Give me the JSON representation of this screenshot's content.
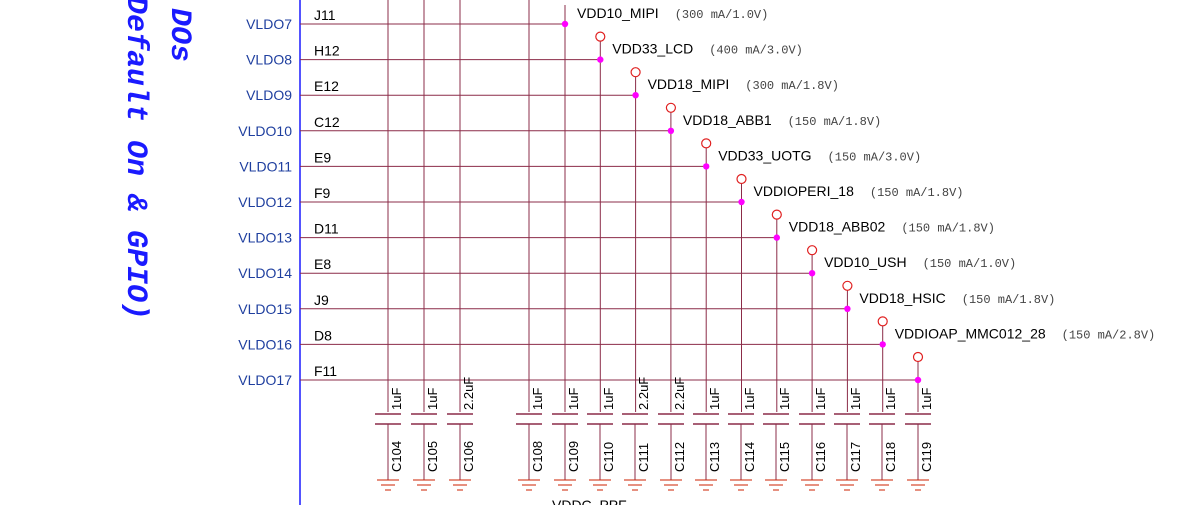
{
  "side_title": {
    "line1": "DOs",
    "line2": "Default On & GPIO)"
  },
  "colors": {
    "wire": "#8b2c48",
    "label_blue": "#1f3f9f",
    "pin_dot": "#ff00ff",
    "terminal": "#e02020",
    "bus": "#1a1aff",
    "ground": "#cc2200"
  },
  "ldos": [
    {
      "name": "VLDO7",
      "pin": "J11",
      "net": "VDD10_MIPI",
      "rating": "(300 mA/1.0V)"
    },
    {
      "name": "VLDO8",
      "pin": "H12",
      "net": "VDD33_LCD",
      "rating": "(400 mA/3.0V)"
    },
    {
      "name": "VLDO9",
      "pin": "E12",
      "net": "VDD18_MIPI",
      "rating": "(300 mA/1.8V)"
    },
    {
      "name": "VLDO10",
      "pin": "C12",
      "net": "VDD18_ABB1",
      "rating": "(150 mA/1.8V)"
    },
    {
      "name": "VLDO11",
      "pin": "E9",
      "net": "VDD33_UOTG",
      "rating": "(150 mA/3.0V)"
    },
    {
      "name": "VLDO12",
      "pin": "F9",
      "net": "VDDIOPERI_18",
      "rating": "(150 mA/1.8V)"
    },
    {
      "name": "VLDO13",
      "pin": "D11",
      "net": "VDD18_ABB02",
      "rating": "(150 mA/1.8V)"
    },
    {
      "name": "VLDO14",
      "pin": "E8",
      "net": "VDD10_USH",
      "rating": "(150 mA/1.0V)"
    },
    {
      "name": "VLDO15",
      "pin": "J9",
      "net": "VDD18_HSIC",
      "rating": "(150 mA/1.8V)"
    },
    {
      "name": "VLDO16",
      "pin": "D8",
      "net": "VDDIOAP_MMC012_28",
      "rating": "(150 mA/2.8V)"
    },
    {
      "name": "VLDO17",
      "pin": "F11",
      "net": "",
      "rating": ""
    }
  ],
  "capacitors": [
    {
      "ref": "C104",
      "value": "1uF"
    },
    {
      "ref": "C105",
      "value": "1uF"
    },
    {
      "ref": "C106",
      "value": "2.2uF"
    },
    {
      "ref": "C108",
      "value": "1uF"
    },
    {
      "ref": "C109",
      "value": "1uF"
    },
    {
      "ref": "C110",
      "value": "1uF"
    },
    {
      "ref": "C111",
      "value": "2.2uF"
    },
    {
      "ref": "C112",
      "value": "2.2uF"
    },
    {
      "ref": "C113",
      "value": "1uF"
    },
    {
      "ref": "C114",
      "value": "1uF"
    },
    {
      "ref": "C115",
      "value": "1uF"
    },
    {
      "ref": "C116",
      "value": "1uF"
    },
    {
      "ref": "C117",
      "value": "1uF"
    },
    {
      "ref": "C118",
      "value": "1uF"
    },
    {
      "ref": "C119",
      "value": "1uF"
    }
  ]
}
